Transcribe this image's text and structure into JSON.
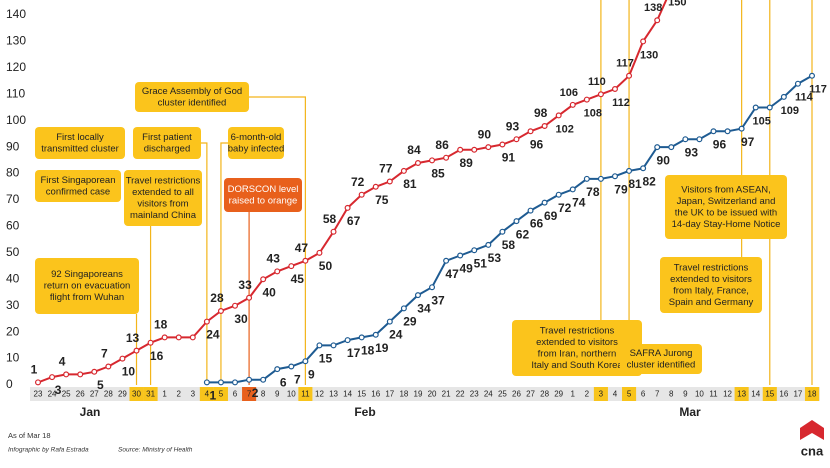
{
  "chart_data": {
    "type": "line",
    "categories": [
      "23",
      "24",
      "25",
      "26",
      "27",
      "28",
      "29",
      "30",
      "31",
      "1",
      "2",
      "3",
      "4",
      "5",
      "6",
      "7",
      "8",
      "9",
      "10",
      "11",
      "12",
      "13",
      "14",
      "15",
      "16",
      "17",
      "18",
      "19",
      "20",
      "21",
      "22",
      "23",
      "24",
      "25",
      "26",
      "27",
      "28",
      "29",
      "1",
      "2",
      "3",
      "4",
      "5",
      "6",
      "7",
      "8",
      "9",
      "10",
      "11",
      "12",
      "13",
      "14",
      "15",
      "16",
      "17",
      "18"
    ],
    "months": [
      "Jan",
      "Feb",
      "Mar"
    ],
    "series": [
      {
        "color": "#d7282f",
        "values": [
          1,
          3,
          4,
          4,
          5,
          7,
          10,
          13,
          16,
          18,
          18,
          18,
          24,
          28,
          30,
          33,
          40,
          43,
          45,
          47,
          50,
          58,
          67,
          72,
          75,
          77,
          81,
          84,
          85,
          86,
          89,
          89,
          90,
          91,
          93,
          96,
          98,
          102,
          106,
          108,
          110,
          112,
          117,
          130,
          138,
          150,
          null,
          null,
          null,
          null,
          null,
          null,
          null,
          null,
          null,
          null
        ]
      },
      {
        "color": "#1e5b92",
        "values": [
          null,
          null,
          null,
          null,
          null,
          null,
          null,
          null,
          null,
          null,
          null,
          null,
          1,
          1,
          1,
          2,
          2,
          6,
          7,
          9,
          15,
          15,
          17,
          18,
          19,
          24,
          29,
          34,
          37,
          47,
          49,
          51,
          53,
          58,
          62,
          66,
          69,
          72,
          74,
          78,
          78,
          79,
          81,
          82,
          90,
          90,
          93,
          93,
          96,
          96,
          97,
          105,
          105,
          109,
          114,
          117
        ]
      }
    ],
    "ylim": [
      0,
      140
    ],
    "yticks": [
      0,
      10,
      20,
      30,
      40,
      50,
      60,
      70,
      80,
      90,
      100,
      110,
      120,
      130,
      140
    ],
    "highlights": [
      {
        "index": 7,
        "color": "#f8c41c"
      },
      {
        "index": 8,
        "color": "#f8c41c"
      },
      {
        "index": 12,
        "color": "#f8c41c"
      },
      {
        "index": 13,
        "color": "#f8c41c"
      },
      {
        "index": 15,
        "color": "#e8601c"
      },
      {
        "index": 19,
        "color": "#f8c41c"
      },
      {
        "index": 40,
        "color": "#f8c41c"
      },
      {
        "index": 42,
        "color": "#f8c41c"
      },
      {
        "index": 50,
        "color": "#f8c41c"
      },
      {
        "index": 52,
        "color": "#f8c41c"
      },
      {
        "index": 55,
        "color": "#f8c41c"
      }
    ],
    "annotations": [
      {
        "lines": [
          "92 Singaporeans",
          "return on evacuation",
          "flight from Wuhan"
        ]
      },
      {
        "lines": [
          "First Singaporean",
          "confirmed case"
        ]
      },
      {
        "lines": [
          "Travel restrictions",
          "extended to all",
          "visitors from",
          "mainland China"
        ]
      },
      {
        "lines": [
          "First locally",
          "transmitted cluster"
        ]
      },
      {
        "lines": [
          "First patient",
          "discharged"
        ]
      },
      {
        "lines": [
          "6-month-old",
          "baby infected"
        ]
      },
      {
        "lines": [
          "DORSCON level",
          "raised to orange"
        ]
      },
      {
        "lines": [
          "Grace Assembly of God",
          "cluster identified"
        ]
      },
      {
        "lines": [
          "Travel restrictions",
          "extended to visitors",
          "from Iran, northern",
          "Italy and South Korea"
        ]
      },
      {
        "lines": [
          "SAFRA Jurong",
          "cluster identified"
        ]
      },
      {
        "lines": [
          "Travel restrictions",
          "extended to visitors",
          "from Italy, France,",
          "Spain and Germany"
        ]
      },
      {
        "lines": [
          "Visitors from ASEAN,",
          "Japan, Switzerland and",
          "the UK to be issued with",
          "14-day Stay-Home Notice"
        ]
      }
    ]
  },
  "footer": {
    "note": "As of Mar 18",
    "credit": "Infographic by Rafa Estrada",
    "source": "Source: Ministry of Health",
    "logo": "cna"
  }
}
